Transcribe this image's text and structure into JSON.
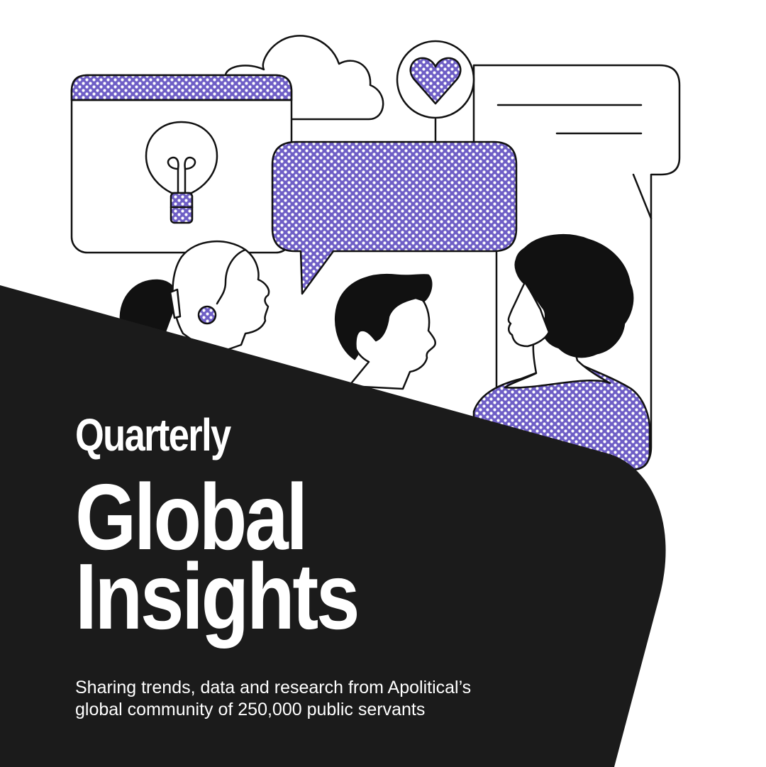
{
  "cover": {
    "kicker": "Quarterly",
    "headline_line1": "Global",
    "headline_line2": "Insights",
    "subtitle_line1": "Sharing trends, data and research from Apolitical’s",
    "subtitle_line2": "global community of 250,000 public servants"
  },
  "colors": {
    "background": "#ffffff",
    "dark_panel": "#1b1b1b",
    "accent_purple": "#6f5fc6",
    "outline": "#111111"
  },
  "icons": [
    "cloud-icon",
    "heart-icon",
    "lightbulb-icon",
    "speech-bubble-icon"
  ]
}
